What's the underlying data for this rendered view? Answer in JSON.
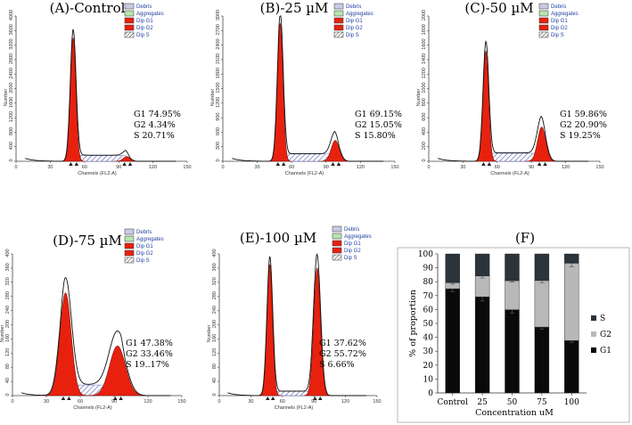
{
  "chart_data": [
    {
      "type": "histogram",
      "title": "(A)-Control",
      "xlabel": "Channels   (FL2-A)",
      "ylabel": "Number",
      "xlim": [
        0,
        150
      ],
      "xticks": [
        0,
        30,
        60,
        90,
        120,
        150
      ],
      "ylim": [
        0,
        4000
      ],
      "yticks": [
        0,
        400,
        800,
        1200,
        1600,
        2000,
        2400,
        2800,
        3200,
        3600,
        4000
      ],
      "legend": [
        "Debris",
        "Aggregates",
        "Dip G1",
        "Dip G2",
        "Dip S"
      ],
      "g1_peak": {
        "channel": 50,
        "height": 3400,
        "width": 2.4
      },
      "g2_peak": {
        "channel": 97,
        "height": 130,
        "width": 3.0
      },
      "s_level": 160,
      "stats": [
        {
          "name": "G1",
          "value": "74.95%"
        },
        {
          "name": "G2",
          "value": "4.34%"
        },
        {
          "name": "S",
          "value": "20.71%"
        }
      ]
    },
    {
      "type": "histogram",
      "title": "(B)-25 µM",
      "xlabel": "Channels   (FL2-A)",
      "ylabel": "Number",
      "xlim": [
        0,
        150
      ],
      "xticks": [
        0,
        30,
        60,
        90,
        120,
        150
      ],
      "ylim": [
        0,
        3000
      ],
      "yticks": [
        0,
        300,
        600,
        900,
        1200,
        1500,
        1800,
        2100,
        2400,
        2700,
        3000
      ],
      "legend": [
        "Debris",
        "Aggregates",
        "Dip G1",
        "Dip G2",
        "Dip S"
      ],
      "g1_peak": {
        "channel": 50,
        "height": 2850,
        "width": 2.4
      },
      "g2_peak": {
        "channel": 98,
        "height": 430,
        "width": 3.5
      },
      "s_level": 150,
      "stats": [
        {
          "name": "G1",
          "value": "69.15%"
        },
        {
          "name": "G2",
          "value": "15.05%"
        },
        {
          "name": "S",
          "value": "15.80%"
        }
      ]
    },
    {
      "type": "histogram",
      "title": "(C)-50 µM",
      "xlabel": "Channels   (FL2-A)",
      "ylabel": "Number",
      "xlim": [
        0,
        150
      ],
      "xticks": [
        0,
        30,
        60,
        90,
        120,
        150
      ],
      "ylim": [
        0,
        2000
      ],
      "yticks": [
        0,
        200,
        400,
        600,
        800,
        1000,
        1200,
        1400,
        1600,
        1800,
        2000
      ],
      "legend": [
        "Debris",
        "Aggregates",
        "Dip G1",
        "Dip G2",
        "Dip S"
      ],
      "g1_peak": {
        "channel": 50,
        "height": 1520,
        "width": 2.4
      },
      "g2_peak": {
        "channel": 99,
        "height": 470,
        "width": 3.6
      },
      "s_level": 110,
      "stats": [
        {
          "name": "G1",
          "value": "59.86%"
        },
        {
          "name": "G2",
          "value": "20.90%"
        },
        {
          "name": "S",
          "value": "19.25%"
        }
      ]
    },
    {
      "type": "histogram",
      "title": "(D)-75 µM",
      "xlabel": "Channels   (FL2-A)",
      "ylabel": "Number",
      "xlim": [
        0,
        150
      ],
      "xticks": [
        0,
        30,
        60,
        90,
        120,
        150
      ],
      "ylim": [
        0,
        400
      ],
      "yticks": [
        0,
        40,
        80,
        120,
        160,
        200,
        240,
        280,
        320,
        360,
        400
      ],
      "legend": [
        "Debris",
        "Aggregates",
        "Dip G1",
        "Dip G2",
        "Dip S"
      ],
      "g1_peak": {
        "channel": 47,
        "height": 290,
        "width": 5.0
      },
      "g2_peak": {
        "channel": 93,
        "height": 140,
        "width": 7.0
      },
      "s_level": 30,
      "stats": [
        {
          "name": "G1",
          "value": "47.38%"
        },
        {
          "name": "G2",
          "value": "33.46%"
        },
        {
          "name": "S",
          "value": "19..17%"
        }
      ]
    },
    {
      "type": "histogram",
      "title": "(E)-100 µM",
      "xlabel": "Channels   (FL2-A)",
      "ylabel": "Number",
      "xlim": [
        0,
        150
      ],
      "xticks": [
        0,
        30,
        60,
        90,
        120,
        150
      ],
      "ylim": [
        0,
        400
      ],
      "yticks": [
        0,
        40,
        80,
        120,
        160,
        200,
        240,
        280,
        320,
        360,
        400
      ],
      "legend": [
        "Debris",
        "Aggregates",
        "Dip G1",
        "Dip G2",
        "Dip S"
      ],
      "g1_peak": {
        "channel": 48,
        "height": 370,
        "width": 2.6
      },
      "g2_peak": {
        "channel": 93,
        "height": 360,
        "width": 3.2
      },
      "s_level": 12,
      "stats": [
        {
          "name": "G1",
          "value": "37.62%"
        },
        {
          "name": "G2",
          "value": "55.72%"
        },
        {
          "name": "S",
          "value": "6.66%"
        }
      ]
    },
    {
      "type": "stacked-bar",
      "title": "(F)",
      "xlabel": "Concentration uM",
      "ylabel": "% of proportion",
      "categories": [
        "Control",
        "25",
        "50",
        "75",
        "100"
      ],
      "ylim": [
        0,
        100
      ],
      "yticks": [
        0,
        10,
        20,
        30,
        40,
        50,
        60,
        70,
        80,
        90,
        100
      ],
      "series": [
        {
          "name": "G1",
          "values": [
            74.95,
            69.15,
            59.86,
            47.38,
            37.62
          ],
          "errors": [
            2.0,
            3.0,
            2.5,
            1.5,
            1.2
          ]
        },
        {
          "name": "G2",
          "values": [
            4.34,
            15.05,
            20.9,
            33.46,
            55.72
          ],
          "errors": [
            1.0,
            1.5,
            1.0,
            1.5,
            2.5
          ]
        },
        {
          "name": "S",
          "values": [
            20.71,
            15.8,
            19.25,
            19.17,
            6.66
          ],
          "errors": [
            0,
            0,
            0,
            0,
            0
          ]
        }
      ],
      "legend": [
        "S",
        "G2",
        "G1"
      ],
      "colors": {
        "G1": "#0a0a0a",
        "G2": "#b8b8b8",
        "S": "#2b333b"
      }
    }
  ],
  "colors": {
    "g1_fill": "#e8210f",
    "g2_fill": "#e8210f",
    "s_hatch": "#5a5fb0",
    "debris": "#c7cbe6",
    "aggregates": "#b7e5b0",
    "trace": "#111111",
    "axis": "#444444",
    "legend_text": "#1f3f9f"
  }
}
